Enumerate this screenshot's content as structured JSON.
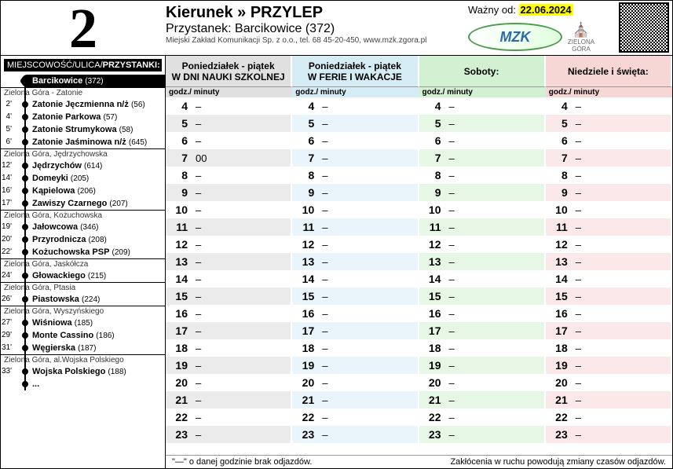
{
  "line_number": "2",
  "dest_prefix": "Kierunek » ",
  "dest": "PRZYLEP",
  "stop_prefix": "Przystanek: ",
  "stop_name": "Barcikowice (372)",
  "operator": "Miejski Zakład Komunikacji Sp. z o.o., tel. 68 45-20-450, www.mzk.zgora.pl",
  "valid_label": "Ważny od: ",
  "valid_date": "22.06.2024",
  "logo_text": "MZK",
  "logo_city": "ZIELONA GÓRA",
  "left_header_a": "MIEJSCOWOŚĆ/ULICA/",
  "left_header_b": "PRZYSTANKI:",
  "sections": [
    {
      "name": "",
      "stops": [
        {
          "t": "",
          "label": "Barcikowice",
          "code": "(372)",
          "current": true
        }
      ]
    },
    {
      "name": "Zielona Góra - Zatonie",
      "stops": [
        {
          "t": "2'",
          "label": "Zatonie Jęczmienna n/ż",
          "code": "(56)"
        },
        {
          "t": "4'",
          "label": "Zatonie Parkowa",
          "code": "(57)"
        },
        {
          "t": "5'",
          "label": "Zatonie Strumykowa",
          "code": "(58)"
        },
        {
          "t": "6'",
          "label": "Zatonie Jaśminowa n/ż",
          "code": "(645)"
        }
      ]
    },
    {
      "name": "Zielona Góra, Jędrzychowska",
      "stops": [
        {
          "t": "12'",
          "label": "Jędrzychów",
          "code": "(614)"
        },
        {
          "t": "14'",
          "label": "Domeyki",
          "code": "(205)"
        },
        {
          "t": "16'",
          "label": "Kąpielowa",
          "code": "(206)"
        },
        {
          "t": "17'",
          "label": "Zawiszy Czarnego",
          "code": "(207)"
        }
      ]
    },
    {
      "name": "Zielona Góra, Kożuchowska",
      "stops": [
        {
          "t": "19'",
          "label": "Jałowcowa",
          "code": "(346)"
        },
        {
          "t": "20'",
          "label": "Przyrodnicza",
          "code": "(208)"
        },
        {
          "t": "22'",
          "label": "Kożuchowska PSP",
          "code": "(209)"
        }
      ]
    },
    {
      "name": "Zielona Góra, Jaskółcza",
      "stops": [
        {
          "t": "24'",
          "label": "Głowackiego",
          "code": "(215)"
        }
      ]
    },
    {
      "name": "Zielona Góra, Ptasia",
      "stops": [
        {
          "t": "26'",
          "label": "Piastowska",
          "code": "(224)"
        }
      ]
    },
    {
      "name": "Zielona Góra, Wyszyńskiego",
      "stops": [
        {
          "t": "27'",
          "label": "Wiśniowa",
          "code": "(185)"
        },
        {
          "t": "29'",
          "label": "Monte Cassino",
          "code": "(186)"
        },
        {
          "t": "31'",
          "label": "Węgierska",
          "code": "(187)"
        }
      ]
    },
    {
      "name": "Zielona Góra, al.Wojska Polskiego",
      "stops": [
        {
          "t": "33'",
          "label": "Wojska Polskiego",
          "code": "(188)"
        }
      ]
    }
  ],
  "ellipsis": "...",
  "col_headers": [
    {
      "l1": "Poniedziałek - piątek",
      "l2": "W DNI NAUKI SZKOLNEJ"
    },
    {
      "l1": "Poniedziałek - piątek",
      "l2": "W FERIE I WAKACJE"
    },
    {
      "l1": "Soboty:",
      "l2": ""
    },
    {
      "l1": "Niedziele i święta:",
      "l2": ""
    }
  ],
  "sub_header": "godz./ minuty",
  "hours": [
    "4",
    "5",
    "6",
    "7",
    "8",
    "9",
    "10",
    "11",
    "12",
    "13",
    "14",
    "15",
    "16",
    "17",
    "18",
    "19",
    "20",
    "21",
    "22",
    "23"
  ],
  "minutes": [
    [
      "–",
      "–",
      "–",
      "00",
      "–",
      "–",
      "–",
      "–",
      "–",
      "–",
      "–",
      "–",
      "–",
      "–",
      "–",
      "–",
      "–",
      "–",
      "–",
      "–"
    ],
    [
      "–",
      "–",
      "–",
      "–",
      "–",
      "–",
      "–",
      "–",
      "–",
      "–",
      "–",
      "–",
      "–",
      "–",
      "–",
      "–",
      "–",
      "–",
      "–",
      "–"
    ],
    [
      "–",
      "–",
      "–",
      "–",
      "–",
      "–",
      "–",
      "–",
      "–",
      "–",
      "–",
      "–",
      "–",
      "–",
      "–",
      "–",
      "–",
      "–",
      "–",
      "–"
    ],
    [
      "–",
      "–",
      "–",
      "–",
      "–",
      "–",
      "–",
      "–",
      "–",
      "–",
      "–",
      "–",
      "–",
      "–",
      "–",
      "–",
      "–",
      "–",
      "–",
      "–"
    ]
  ],
  "foot_left": "\"—\" o danej godzinie brak odjazdów.",
  "foot_right": "Zakłócenia w ruchu powodują zmiany czasów odjazdów."
}
